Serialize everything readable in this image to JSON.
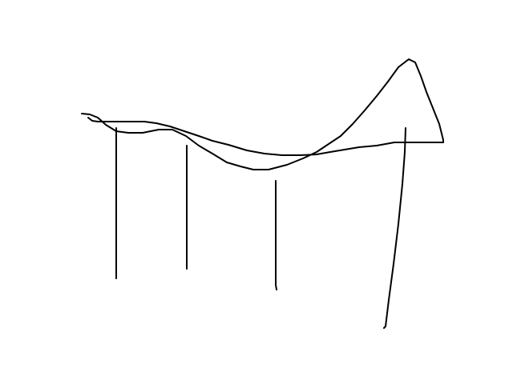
{
  "sketch": {
    "ink_color": "#000000",
    "background_color": "#ffffff",
    "strokes": [
      {
        "name": "canopy-upper-stroke",
        "kind": "curve"
      },
      {
        "name": "canopy-lower-stroke",
        "kind": "curve"
      },
      {
        "name": "support-line-1",
        "kind": "line"
      },
      {
        "name": "support-line-2",
        "kind": "line"
      },
      {
        "name": "support-line-3",
        "kind": "line"
      },
      {
        "name": "support-line-4",
        "kind": "line"
      }
    ]
  }
}
